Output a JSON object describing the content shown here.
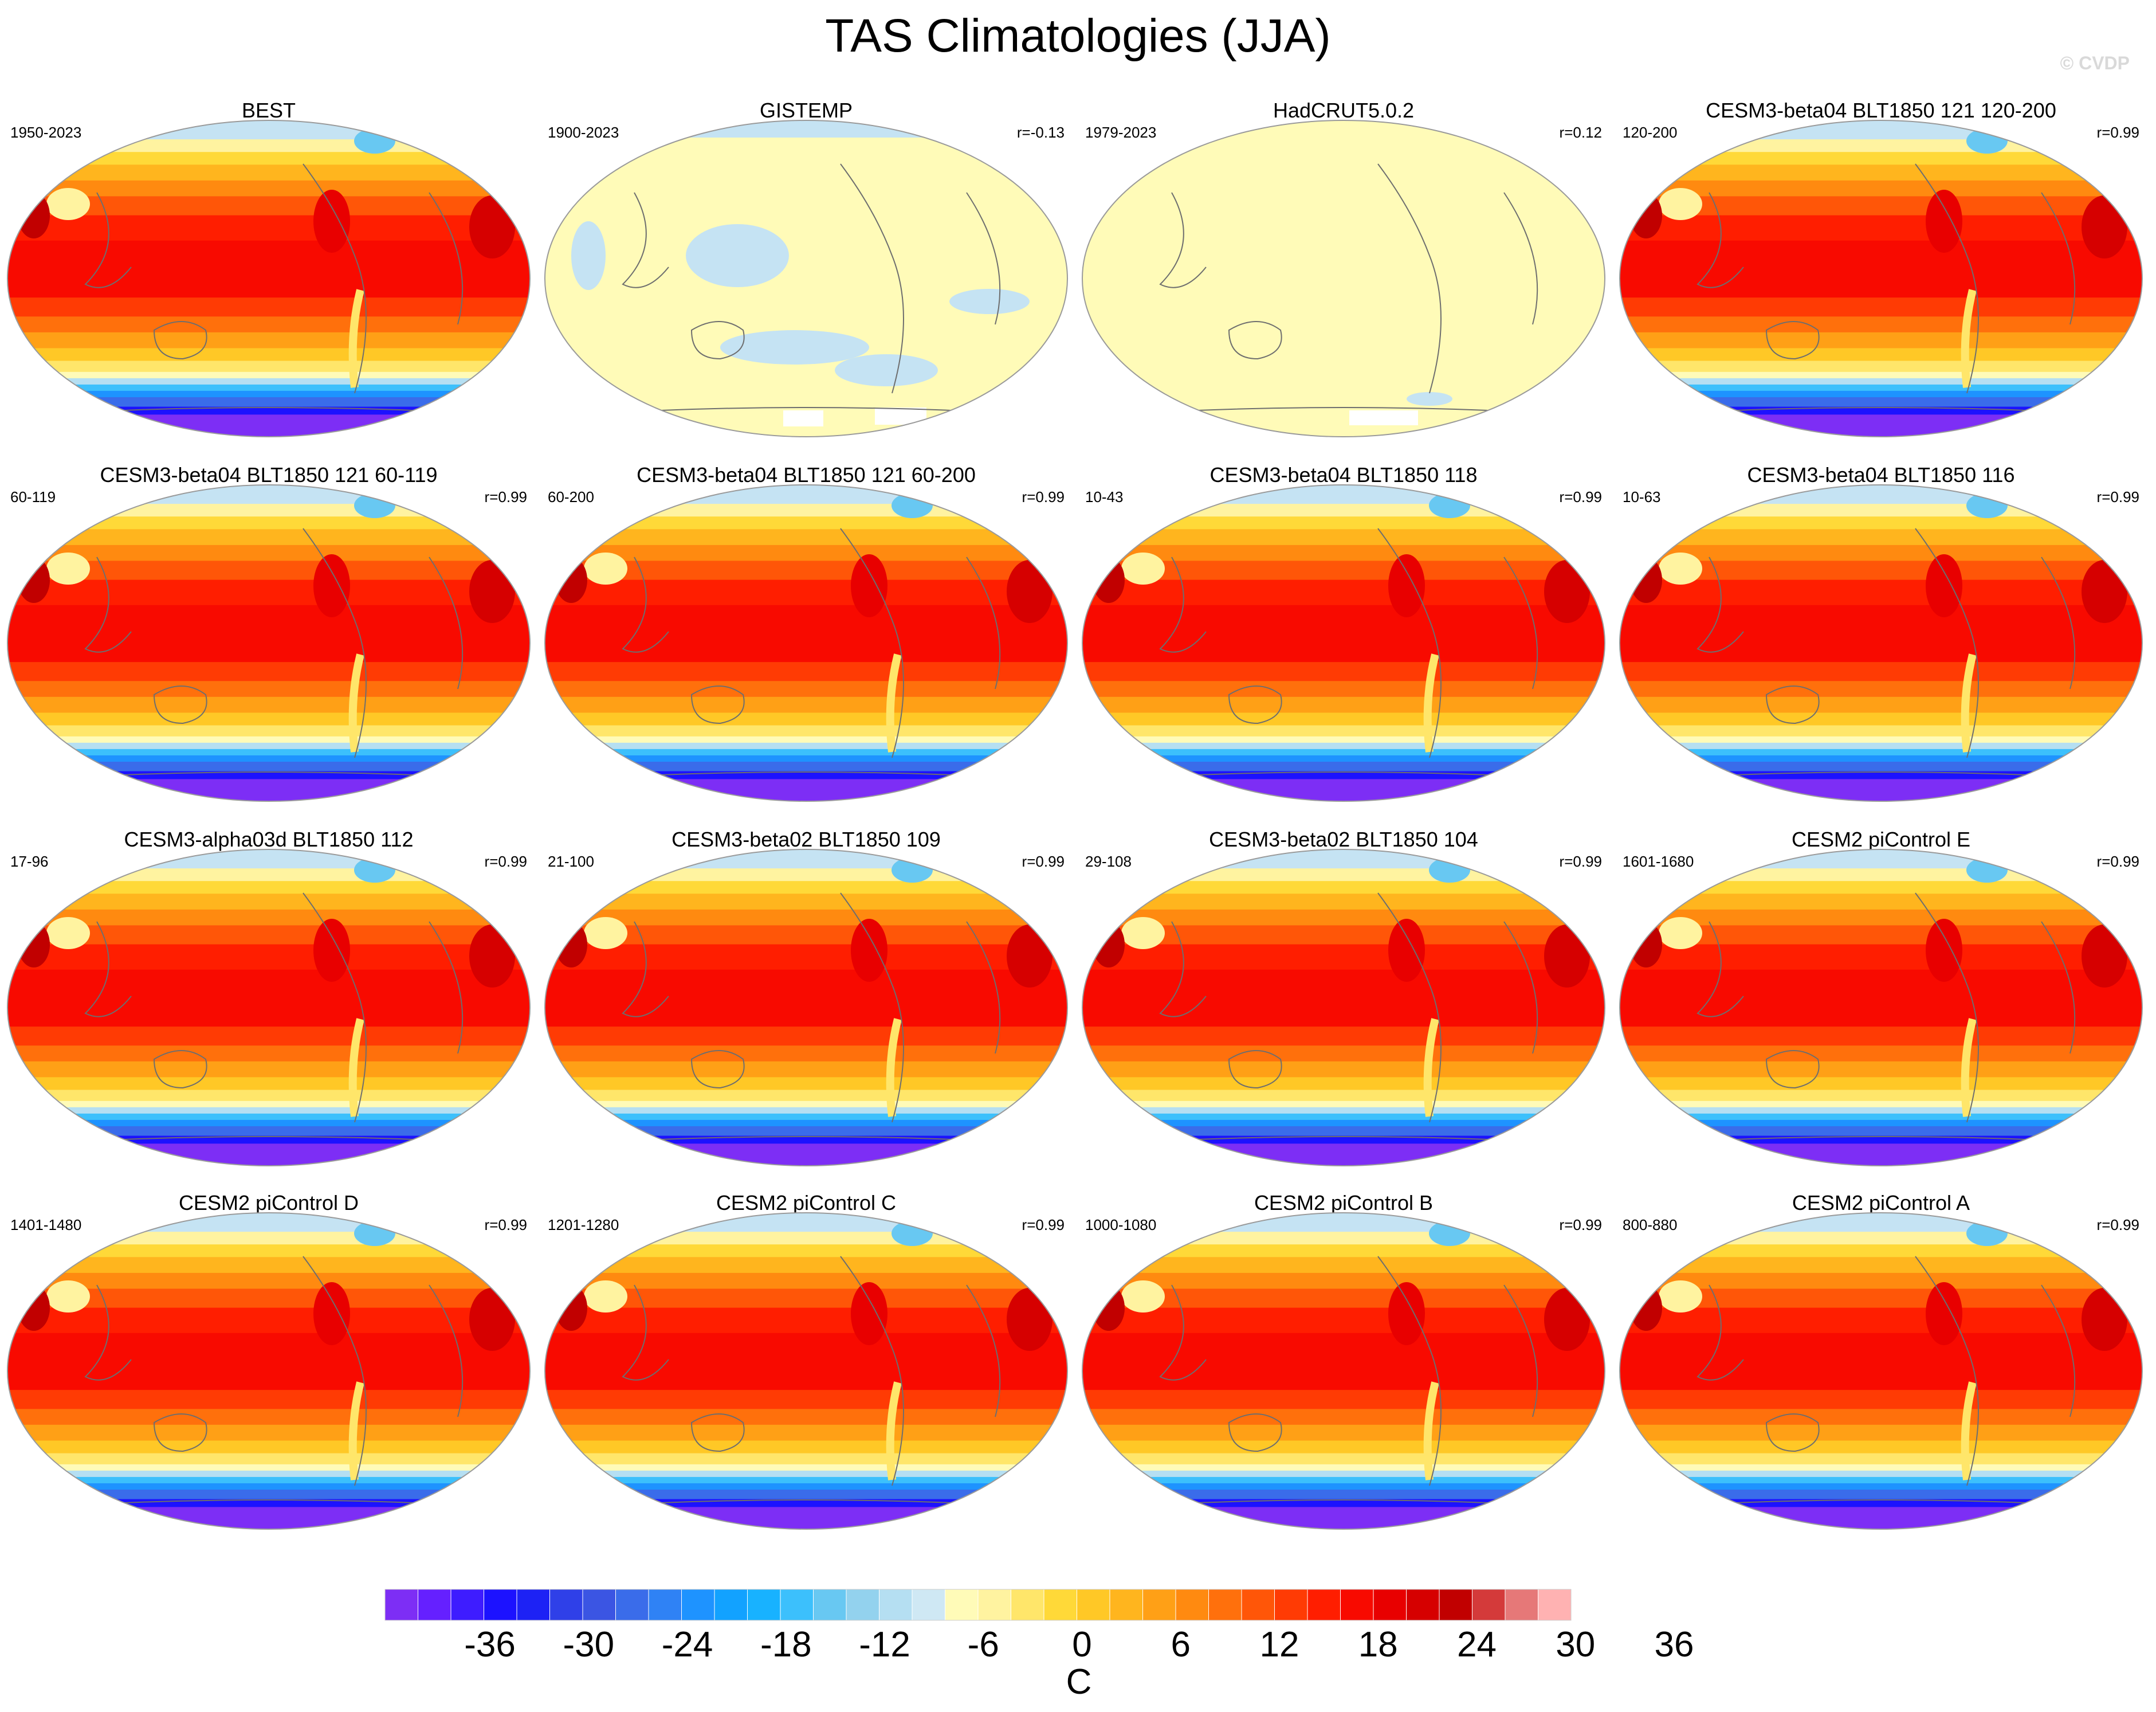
{
  "title": "TAS Climatologies (JJA)",
  "watermark": "© CVDP",
  "panels": [
    {
      "name": "BEST",
      "period": "1950-2023",
      "r": "",
      "field": "full"
    },
    {
      "name": "GISTEMP",
      "period": "1900-2023",
      "r": "r=-0.13",
      "field": "gistemp"
    },
    {
      "name": "HadCRUT5.0.2",
      "period": "1979-2023",
      "r": "r=0.12",
      "field": "hadcrut"
    },
    {
      "name": "CESM3-beta04 BLT1850 121 120-200",
      "period": "120-200",
      "r": "r=0.99",
      "field": "full"
    },
    {
      "name": "CESM3-beta04 BLT1850 121 60-119",
      "period": "60-119",
      "r": "r=0.99",
      "field": "full"
    },
    {
      "name": "CESM3-beta04 BLT1850 121 60-200",
      "period": "60-200",
      "r": "r=0.99",
      "field": "full"
    },
    {
      "name": "CESM3-beta04 BLT1850 118",
      "period": "10-43",
      "r": "r=0.99",
      "field": "full"
    },
    {
      "name": "CESM3-beta04 BLT1850 116",
      "period": "10-63",
      "r": "r=0.99",
      "field": "full"
    },
    {
      "name": "CESM3-alpha03d BLT1850 112",
      "period": "17-96",
      "r": "r=0.99",
      "field": "full"
    },
    {
      "name": "CESM3-beta02 BLT1850 109",
      "period": "21-100",
      "r": "r=0.99",
      "field": "full"
    },
    {
      "name": "CESM3-beta02 BLT1850 104",
      "period": "29-108",
      "r": "r=0.99",
      "field": "full"
    },
    {
      "name": "CESM2 piControl E",
      "period": "1601-1680",
      "r": "r=0.99",
      "field": "full"
    },
    {
      "name": "CESM2 piControl D",
      "period": "1401-1480",
      "r": "r=0.99",
      "field": "full"
    },
    {
      "name": "CESM2 piControl C",
      "period": "1201-1280",
      "r": "r=0.99",
      "field": "full"
    },
    {
      "name": "CESM2 piControl B",
      "period": "1000-1080",
      "r": "r=0.99",
      "field": "full"
    },
    {
      "name": "CESM2 piControl A",
      "period": "800-880",
      "r": "r=0.99",
      "field": "full"
    }
  ],
  "colorbar": {
    "unit": "C",
    "tick_values": [
      -36,
      -30,
      -24,
      -18,
      -12,
      -6,
      0,
      6,
      12,
      18,
      24,
      30,
      36
    ],
    "tick_labels": [
      "-36",
      "-30",
      "-24",
      "-18",
      "-12",
      "-6",
      "0",
      "6",
      "12",
      "18",
      "24",
      "30",
      "36"
    ],
    "colors": [
      "#7d2ef5",
      "#6520ff",
      "#3e1cff",
      "#1c12ff",
      "#1d22f5",
      "#2f40e8",
      "#3b55e3",
      "#3a6cea",
      "#2f82f5",
      "#1e93ff",
      "#12a2ff",
      "#18b2ff",
      "#3cc0fc",
      "#68c8f2",
      "#93d2ee",
      "#b5dff2",
      "#cfe8f4",
      "#fffbb8",
      "#fff3a0",
      "#ffe66a",
      "#ffd938",
      "#ffc826",
      "#ffb51e",
      "#ffa016",
      "#ff8a10",
      "#ff700c",
      "#ff5608",
      "#ff3b04",
      "#ff1e00",
      "#f80a00",
      "#e80000",
      "#d60000",
      "#c10000",
      "#d43a3a",
      "#e67878",
      "#ffb2b2"
    ]
  }
}
